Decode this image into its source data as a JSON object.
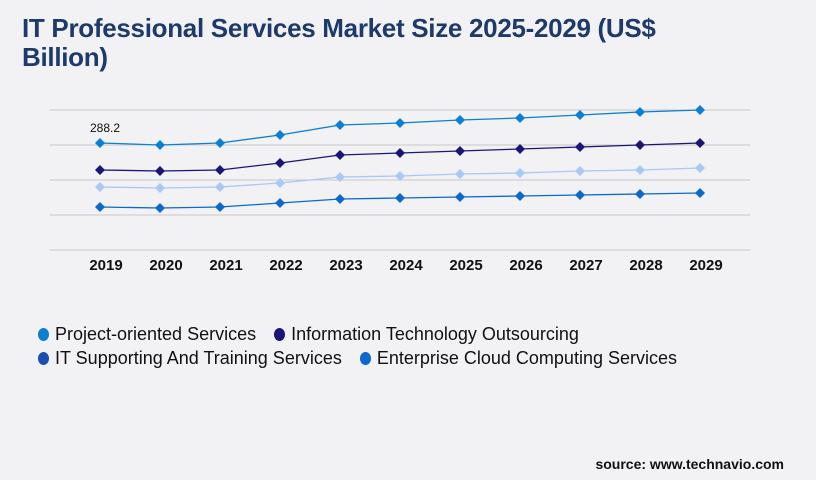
{
  "title": "IT Professional Services Market Size 2025-2029 (US$ Billion)",
  "source": "source: www.technavio.com",
  "chart_data": {
    "type": "line",
    "title": "IT Professional Services Market Size 2025-2029 (US$ Billion)",
    "x": [
      "2019",
      "2020",
      "2021",
      "2022",
      "2023",
      "2024",
      "2025",
      "2026",
      "2027",
      "2028",
      "2029"
    ],
    "ylim": [
      0,
      377
    ],
    "grid": true,
    "legend_position": "bottom",
    "annotation": "288.2",
    "series": [
      {
        "name": "Project-oriented Services",
        "color": "#0a7fd4",
        "values": [
          288.2,
          282.8,
          288.2,
          309.7,
          336.6,
          342.0,
          350.1,
          355.5,
          363.6,
          371.6,
          377.0
        ]
      },
      {
        "name": "Information Technology Outsourcing",
        "color": "#1a1577",
        "values": [
          215.5,
          212.7,
          215.5,
          234.3,
          255.8,
          261.2,
          266.6,
          272.0,
          277.4,
          282.8,
          288.2
        ]
      },
      {
        "name": "IT Supporting And Training Services",
        "color": "#a9c8f5",
        "legend_color": "#1a4fb0",
        "values": [
          169.7,
          167.0,
          169.7,
          180.4,
          196.6,
          199.3,
          204.7,
          207.4,
          212.7,
          215.5,
          220.8
        ]
      },
      {
        "name": "Enterprise Cloud Computing Services",
        "color": "#0b68cc",
        "values": [
          115.8,
          113.1,
          115.8,
          126.6,
          137.3,
          140.0,
          142.7,
          145.4,
          148.1,
          150.8,
          153.5
        ]
      }
    ]
  }
}
